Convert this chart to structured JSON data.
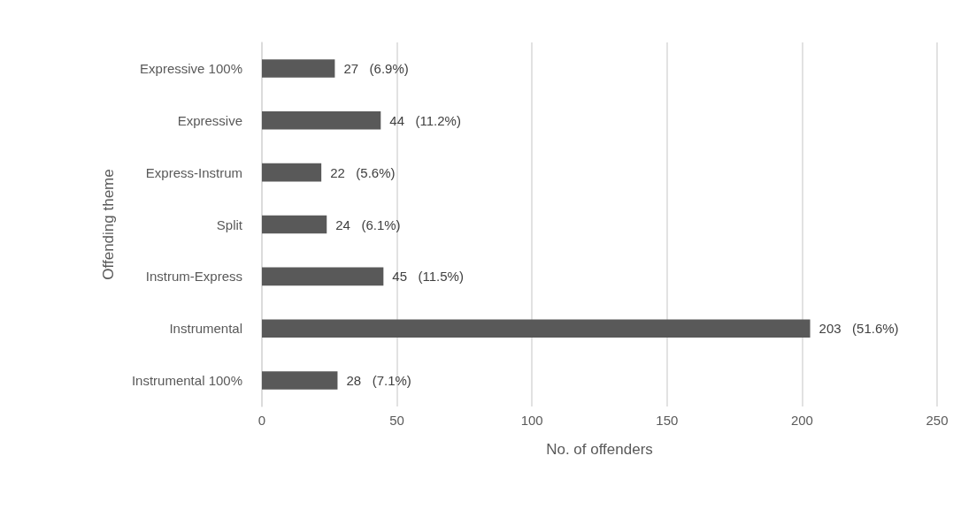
{
  "chart_data": {
    "type": "bar",
    "orientation": "horizontal",
    "xlabel": "No. of offenders",
    "ylabel": "Offending theme",
    "categories": [
      "Expressive 100%",
      "Expressive",
      "Express-Instrum",
      "Split",
      "Instrum-Express",
      "Instrumental",
      "Instrumental 100%"
    ],
    "values": [
      27,
      44,
      22,
      24,
      45,
      203,
      28
    ],
    "value_labels": [
      "27   (6.9%)",
      "44   (11.2%)",
      "22   (5.6%)",
      "24   (6.1%)",
      "45   (11.5%)",
      "203   (51.6%)",
      "28   (7.1%)"
    ],
    "color": "#595959",
    "xlim": [
      0,
      250
    ],
    "xticks": [
      0,
      50,
      100,
      150,
      200,
      250
    ],
    "grid": "x"
  }
}
